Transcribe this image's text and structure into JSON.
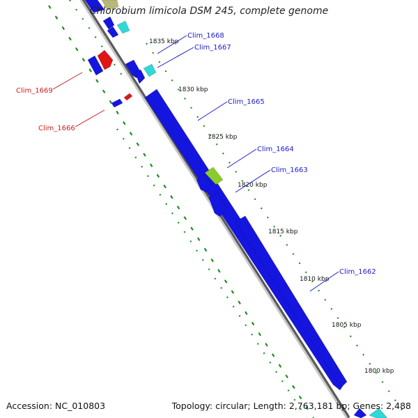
{
  "title": "Chlorobium limicola DSM 245, complete genome",
  "footer": {
    "accession": "Accession: NC_010803",
    "summary": "Topology: circular; Length: 2,763,181 bp; Genes: 2,488"
  },
  "ticks": [
    "1835 kbp",
    "1830 kbp",
    "1825 kbp",
    "1820 kbp",
    "1815 kbp",
    "1810 kbp",
    "1805 kbp",
    "1800 kbp"
  ],
  "gene_labels": [
    "Clim_1668",
    "Clim_1667",
    "Clim_1665",
    "Clim_1664",
    "Clim_1663",
    "Clim_1662",
    "Clim_1669",
    "Clim_1666"
  ],
  "colors": {
    "backbone": "#8a8a8a",
    "forward_gene": "#1515e0",
    "reverse_gene": "#e01515",
    "rna_gene": "#30d8d8",
    "misc_gene": "#8acc2a",
    "forward_label": "#1a1acc",
    "reverse_label": "#d01a1a",
    "dotted_track": "#1e8c1e"
  }
}
